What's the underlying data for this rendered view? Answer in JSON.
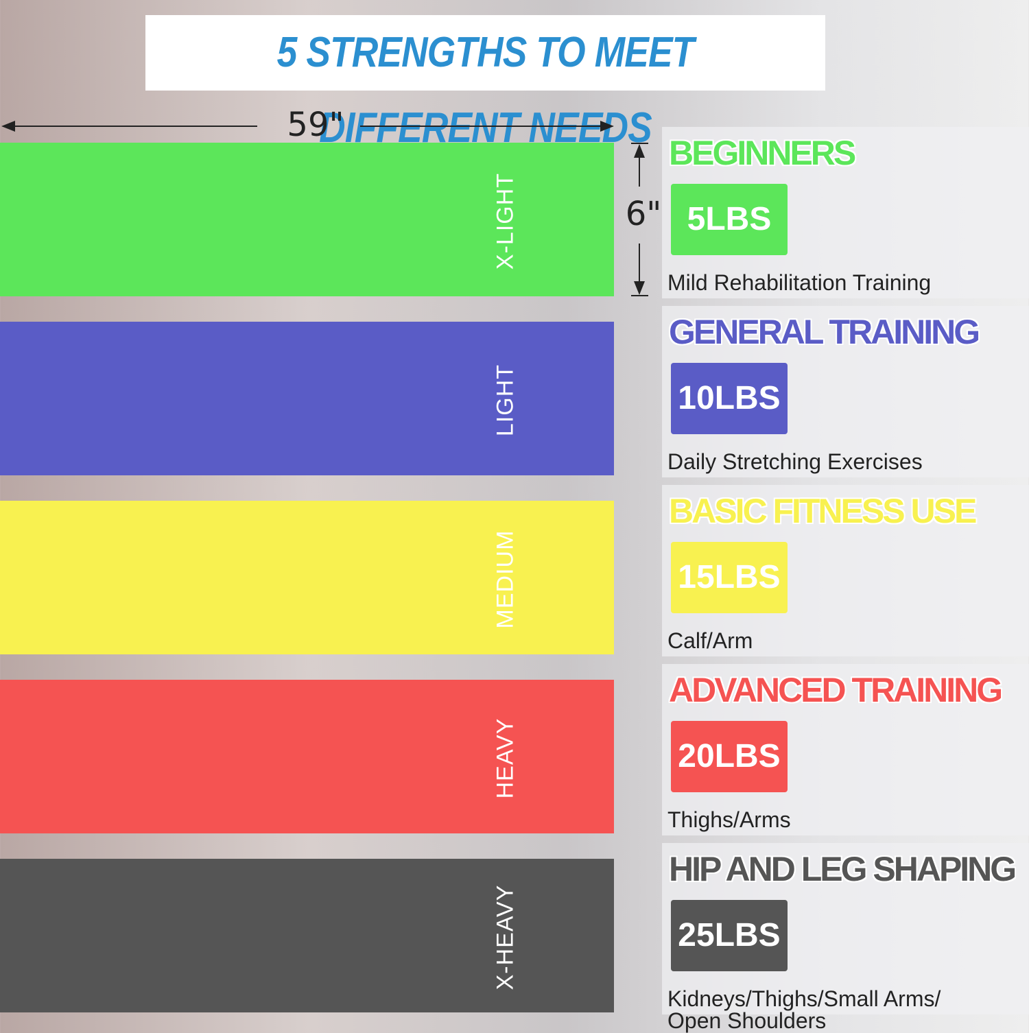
{
  "header": {
    "title": "5 STRENGTHS TO MEET DIFFERENT NEEDS"
  },
  "dimensions": {
    "length": "59\"",
    "width": "6\""
  },
  "bands": [
    {
      "label": "X-LIGHT",
      "level": "BEGINNERS",
      "weight": "5LBS",
      "use": "Mild Rehabilitation Training",
      "color": "#5ce65a"
    },
    {
      "label": "LIGHT",
      "level": "GENERAL TRAINING",
      "weight": "10LBS",
      "use": "Daily Stretching Exercises",
      "color": "#5a5cc6"
    },
    {
      "label": "MEDIUM",
      "level": "BASIC FITNESS USE",
      "weight": "15LBS",
      "use": "Calf/Arm",
      "color": "#f8f150"
    },
    {
      "label": "HEAVY",
      "level": "ADVANCED TRAINING",
      "weight": "20LBS",
      "use": "Thighs/Arms",
      "color": "#f55352"
    },
    {
      "label": "X-HEAVY",
      "level": "HIP AND LEG SHAPING",
      "weight": "25LBS",
      "use": "Kidneys/Thighs/Small Arms/ Open Shoulders",
      "color": "#555555"
    }
  ]
}
